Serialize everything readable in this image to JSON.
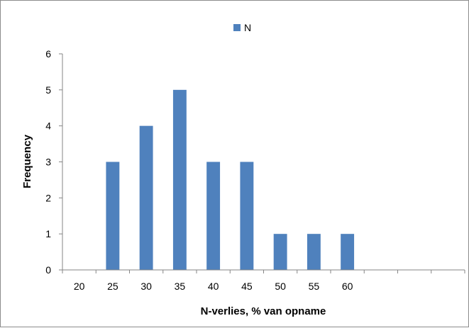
{
  "chart_data": {
    "type": "bar",
    "categories": [
      "20",
      "25",
      "30",
      "35",
      "40",
      "45",
      "50",
      "55",
      "60",
      "",
      "",
      ""
    ],
    "series": [
      {
        "name": "N",
        "values": [
          0,
          3,
          4,
          5,
          3,
          3,
          1,
          1,
          1,
          0,
          0,
          0
        ],
        "color": "#4f81bd"
      }
    ],
    "xlabel": "N-verlies, % van opname",
    "ylabel": "Frequency",
    "ylim": [
      0,
      6
    ],
    "yticks": [
      "0",
      "1",
      "2",
      "3",
      "4",
      "5",
      "6"
    ],
    "grid": false,
    "legend_position": "top-center"
  }
}
